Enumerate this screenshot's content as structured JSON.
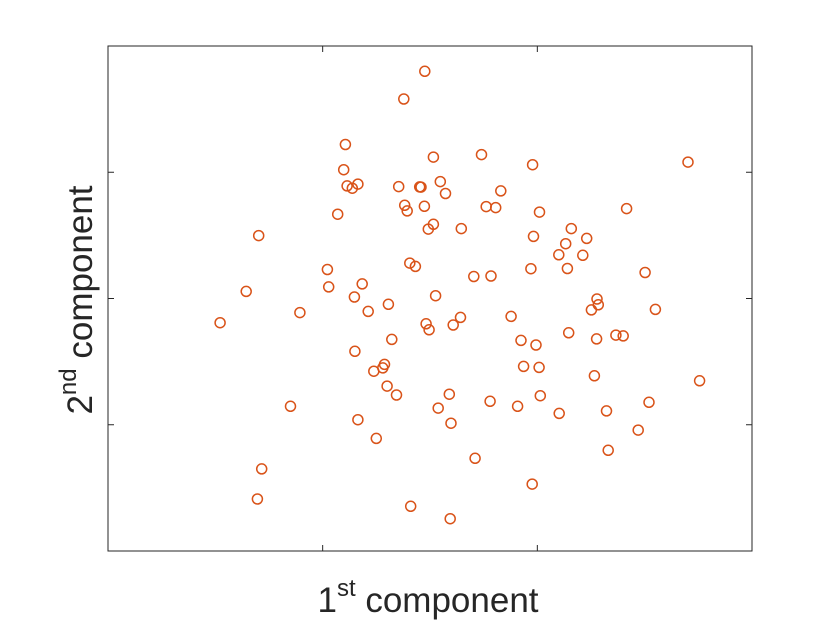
{
  "chart_data": {
    "type": "scatter",
    "title": "",
    "xlabel": {
      "prefix": "1",
      "superscript": "st",
      "text": " component"
    },
    "ylabel": {
      "prefix": "2",
      "superscript": "nd",
      "text": " component"
    },
    "xlim": [
      -5,
      10
    ],
    "ylim": [
      -5,
      15
    ],
    "xticks": [
      0,
      5
    ],
    "yticks": [
      0,
      5,
      10
    ],
    "tick_labels_shown": false,
    "grid": false,
    "legend": "none",
    "marker": "open-circle",
    "color": "#D95319",
    "points": [
      [
        -2.39,
        4.04
      ],
      [
        -1.78,
        5.28
      ],
      [
        -1.49,
        7.49
      ],
      [
        -1.52,
        -2.94
      ],
      [
        -1.42,
        -1.75
      ],
      [
        -0.75,
        0.73
      ],
      [
        -0.53,
        4.44
      ],
      [
        0.11,
        6.15
      ],
      [
        0.14,
        5.46
      ],
      [
        0.35,
        8.34
      ],
      [
        0.49,
        10.1
      ],
      [
        0.53,
        11.1
      ],
      [
        0.57,
        9.46
      ],
      [
        0.69,
        9.37
      ],
      [
        0.74,
        5.06
      ],
      [
        0.75,
        2.91
      ],
      [
        0.82,
        9.53
      ],
      [
        0.82,
        0.2
      ],
      [
        0.92,
        5.58
      ],
      [
        1.06,
        4.49
      ],
      [
        1.19,
        2.12
      ],
      [
        1.25,
        -0.54
      ],
      [
        1.4,
        2.25
      ],
      [
        1.44,
        2.39
      ],
      [
        1.5,
        1.53
      ],
      [
        1.53,
        4.77
      ],
      [
        1.61,
        3.38
      ],
      [
        1.72,
        1.18
      ],
      [
        1.77,
        9.43
      ],
      [
        1.89,
        12.9
      ],
      [
        1.91,
        8.69
      ],
      [
        1.97,
        8.47
      ],
      [
        2.03,
        6.4
      ],
      [
        2.05,
        -3.23
      ],
      [
        2.16,
        6.27
      ],
      [
        2.26,
        9.42
      ],
      [
        2.29,
        9.41
      ],
      [
        2.37,
        8.65
      ],
      [
        2.38,
        14.0
      ],
      [
        2.41,
        4.0
      ],
      [
        2.46,
        7.75
      ],
      [
        2.48,
        3.76
      ],
      [
        2.58,
        7.94
      ],
      [
        2.58,
        10.6
      ],
      [
        2.63,
        5.11
      ],
      [
        2.69,
        0.66
      ],
      [
        2.74,
        9.63
      ],
      [
        2.86,
        9.16
      ],
      [
        2.95,
        1.21
      ],
      [
        2.97,
        -3.72
      ],
      [
        2.99,
        0.06
      ],
      [
        3.04,
        3.95
      ],
      [
        3.21,
        4.25
      ],
      [
        3.23,
        7.77
      ],
      [
        3.52,
        5.87
      ],
      [
        3.55,
        -1.33
      ],
      [
        3.7,
        10.7
      ],
      [
        3.81,
        8.64
      ],
      [
        3.9,
        0.93
      ],
      [
        3.92,
        5.89
      ],
      [
        4.03,
        8.6
      ],
      [
        4.15,
        9.26
      ],
      [
        4.39,
        4.29
      ],
      [
        4.54,
        0.73
      ],
      [
        4.62,
        3.34
      ],
      [
        4.68,
        2.31
      ],
      [
        4.85,
        6.18
      ],
      [
        4.88,
        -2.35
      ],
      [
        4.89,
        10.3
      ],
      [
        4.91,
        7.46
      ],
      [
        4.97,
        3.16
      ],
      [
        5.04,
        2.27
      ],
      [
        5.05,
        8.42
      ],
      [
        5.07,
        1.15
      ],
      [
        5.51,
        0.45
      ],
      [
        5.5,
        6.73
      ],
      [
        5.66,
        7.17
      ],
      [
        5.7,
        6.19
      ],
      [
        5.73,
        3.64
      ],
      [
        5.79,
        7.77
      ],
      [
        6.06,
        6.71
      ],
      [
        6.15,
        7.38
      ],
      [
        6.26,
        4.55
      ],
      [
        6.33,
        1.94
      ],
      [
        6.38,
        3.4
      ],
      [
        6.39,
        4.98
      ],
      [
        6.42,
        4.75
      ],
      [
        6.61,
        0.55
      ],
      [
        6.65,
        -1.01
      ],
      [
        6.83,
        3.55
      ],
      [
        7.0,
        3.52
      ],
      [
        7.08,
        8.56
      ],
      [
        7.35,
        -0.21
      ],
      [
        7.51,
        6.03
      ],
      [
        7.6,
        0.89
      ],
      [
        7.75,
        4.57
      ],
      [
        8.51,
        10.4
      ],
      [
        8.78,
        1.74
      ]
    ]
  }
}
